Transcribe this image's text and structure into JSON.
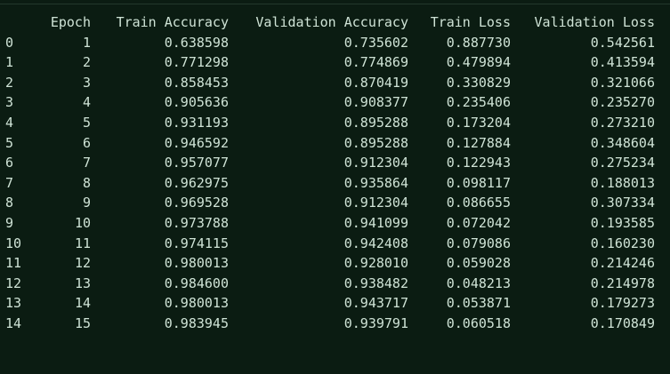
{
  "table": {
    "columns": [
      "",
      "Epoch",
      "Train Accuracy",
      "Validation Accuracy",
      "Train Loss",
      "Validation Loss"
    ],
    "rows": [
      [
        "0",
        "1",
        "0.638598",
        "0.735602",
        "0.887730",
        "0.542561"
      ],
      [
        "1",
        "2",
        "0.771298",
        "0.774869",
        "0.479894",
        "0.413594"
      ],
      [
        "2",
        "3",
        "0.858453",
        "0.870419",
        "0.330829",
        "0.321066"
      ],
      [
        "3",
        "4",
        "0.905636",
        "0.908377",
        "0.235406",
        "0.235270"
      ],
      [
        "4",
        "5",
        "0.931193",
        "0.895288",
        "0.173204",
        "0.273210"
      ],
      [
        "5",
        "6",
        "0.946592",
        "0.895288",
        "0.127884",
        "0.348604"
      ],
      [
        "6",
        "7",
        "0.957077",
        "0.912304",
        "0.122943",
        "0.275234"
      ],
      [
        "7",
        "8",
        "0.962975",
        "0.935864",
        "0.098117",
        "0.188013"
      ],
      [
        "8",
        "9",
        "0.969528",
        "0.912304",
        "0.086655",
        "0.307334"
      ],
      [
        "9",
        "10",
        "0.973788",
        "0.941099",
        "0.072042",
        "0.193585"
      ],
      [
        "10",
        "11",
        "0.974115",
        "0.942408",
        "0.079086",
        "0.160230"
      ],
      [
        "11",
        "12",
        "0.980013",
        "0.928010",
        "0.059028",
        "0.214246"
      ],
      [
        "12",
        "13",
        "0.984600",
        "0.938482",
        "0.048213",
        "0.214978"
      ],
      [
        "13",
        "14",
        "0.980013",
        "0.943717",
        "0.053871",
        "0.179273"
      ],
      [
        "14",
        "15",
        "0.983945",
        "0.939791",
        "0.060518",
        "0.170849"
      ]
    ]
  },
  "colors": {
    "background": "#0b1c12",
    "text": "#cfe3d6"
  }
}
